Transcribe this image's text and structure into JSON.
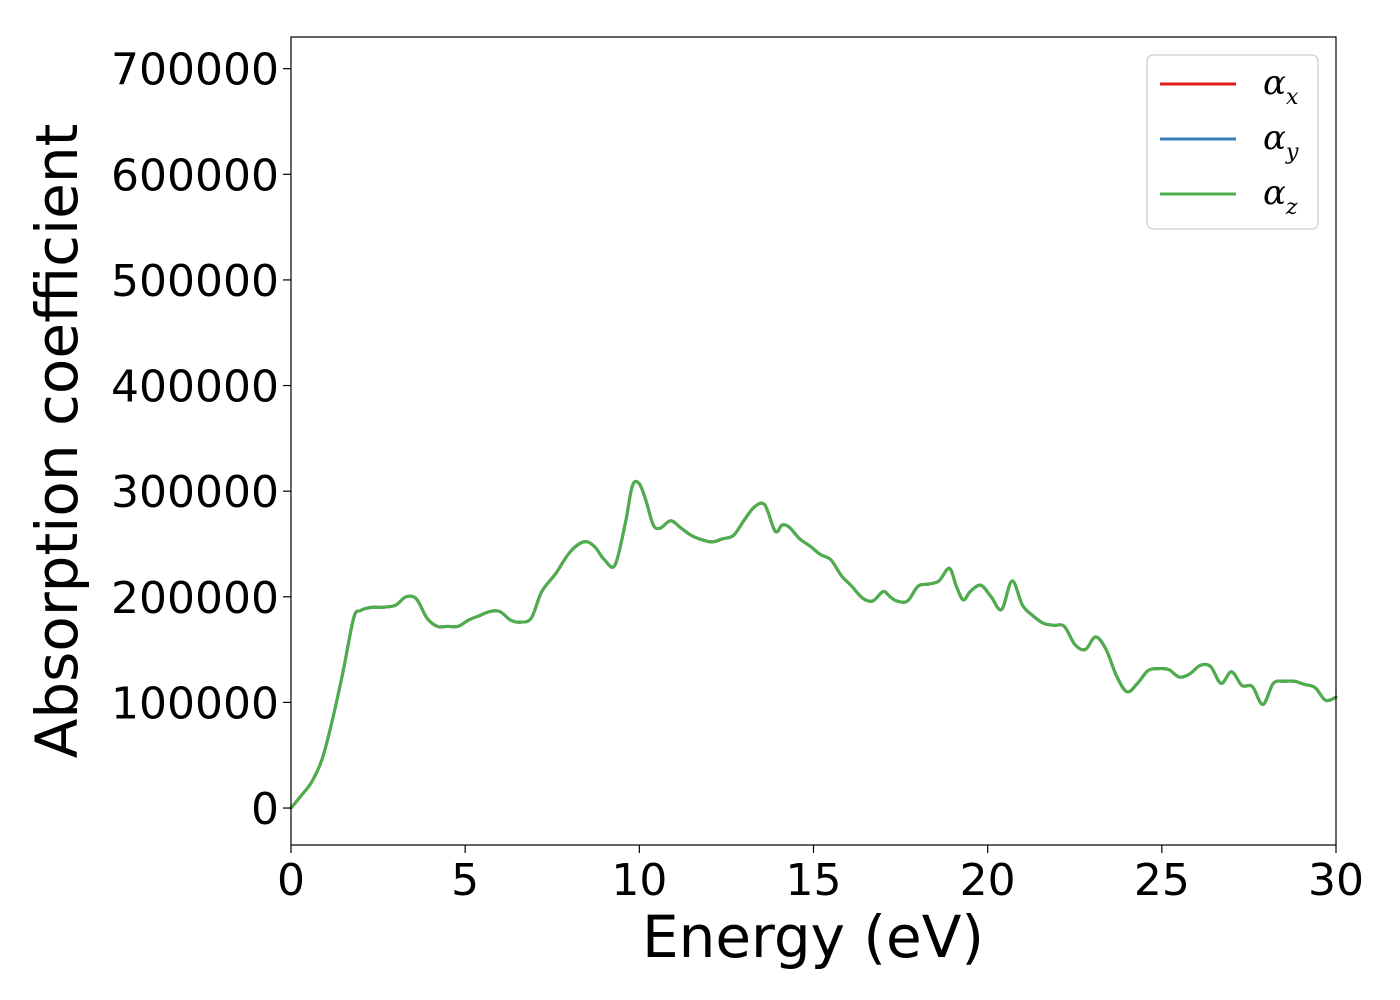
{
  "chart_data": {
    "type": "line",
    "xlabel": "Energy (eV)",
    "ylabel": "Absorption coefficient",
    "xlim": [
      0,
      30
    ],
    "ylim": [
      -35000,
      730000
    ],
    "xticks": [
      "0",
      "5",
      "10",
      "15",
      "20",
      "25",
      "30"
    ],
    "xtick_values": [
      0,
      5,
      10,
      15,
      20,
      25,
      30
    ],
    "yticks": [
      "0",
      "100000",
      "200000",
      "300000",
      "400000",
      "500000",
      "600000",
      "700000"
    ],
    "ytick_values": [
      0,
      100000,
      200000,
      300000,
      400000,
      500000,
      600000,
      700000
    ],
    "grid": false,
    "legend_position": "top-right",
    "x": [
      0,
      0.3,
      0.6,
      0.9,
      1.2,
      1.5,
      1.8,
      2.0,
      2.3,
      2.6,
      3.0,
      3.3,
      3.6,
      3.9,
      4.2,
      4.5,
      4.8,
      5.1,
      5.4,
      5.7,
      6.0,
      6.3,
      6.6,
      6.9,
      7.2,
      7.6,
      8.0,
      8.4,
      8.7,
      9.0,
      9.3,
      9.6,
      9.8,
      10.0,
      10.2,
      10.4,
      10.6,
      10.9,
      11.2,
      11.5,
      11.8,
      12.1,
      12.4,
      12.7,
      13.0,
      13.3,
      13.6,
      13.9,
      14.1,
      14.3,
      14.6,
      14.9,
      15.2,
      15.5,
      15.8,
      16.1,
      16.4,
      16.7,
      17.0,
      17.2,
      17.4,
      17.7,
      18.0,
      18.3,
      18.6,
      18.9,
      19.1,
      19.3,
      19.5,
      19.8,
      20.1,
      20.4,
      20.7,
      21.0,
      21.3,
      21.6,
      21.9,
      22.2,
      22.5,
      22.8,
      23.1,
      23.4,
      23.7,
      24.0,
      24.3,
      24.6,
      24.9,
      25.2,
      25.5,
      25.8,
      26.1,
      26.4,
      26.7,
      27.0,
      27.3,
      27.6,
      27.9,
      28.2,
      28.5,
      28.8,
      29.1,
      29.4,
      29.7,
      30.0
    ],
    "series": [
      {
        "name": "α_x",
        "label_main": "α",
        "label_sub": "x",
        "color": "#e41a1c",
        "values": [
          0,
          12000,
          25000,
          47000,
          85000,
          130000,
          180000,
          187000,
          190000,
          190000,
          192000,
          200000,
          198000,
          180000,
          172000,
          172000,
          172000,
          178000,
          182000,
          186000,
          186000,
          178000,
          176000,
          180000,
          205000,
          222000,
          242000,
          252000,
          248000,
          235000,
          230000,
          270000,
          305000,
          307000,
          290000,
          268000,
          265000,
          272000,
          265000,
          258000,
          254000,
          252000,
          255000,
          258000,
          272000,
          285000,
          287000,
          262000,
          268000,
          266000,
          255000,
          248000,
          240000,
          235000,
          220000,
          210000,
          199000,
          196000,
          205000,
          200000,
          196000,
          196000,
          210000,
          212000,
          215000,
          227000,
          210000,
          197000,
          205000,
          211000,
          200000,
          188000,
          215000,
          192000,
          182000,
          175000,
          173000,
          172000,
          155000,
          150000,
          162000,
          150000,
          125000,
          110000,
          118000,
          130000,
          132000,
          131000,
          124000,
          127000,
          135000,
          134000,
          118000,
          129000,
          116000,
          115000,
          98000,
          118000,
          120000,
          120000,
          117000,
          114000,
          102000,
          105000
        ]
      },
      {
        "name": "α_y",
        "label_main": "α",
        "label_sub": "y",
        "color": "#377eb8",
        "values": [
          0,
          12000,
          25000,
          47000,
          85000,
          130000,
          180000,
          187000,
          190000,
          190000,
          192000,
          200000,
          198000,
          180000,
          172000,
          172000,
          172000,
          178000,
          182000,
          186000,
          186000,
          178000,
          176000,
          180000,
          205000,
          222000,
          242000,
          252000,
          248000,
          235000,
          230000,
          270000,
          305000,
          307000,
          290000,
          268000,
          265000,
          272000,
          265000,
          258000,
          254000,
          252000,
          255000,
          258000,
          272000,
          285000,
          287000,
          262000,
          268000,
          266000,
          255000,
          248000,
          240000,
          235000,
          220000,
          210000,
          199000,
          196000,
          205000,
          200000,
          196000,
          196000,
          210000,
          212000,
          215000,
          227000,
          210000,
          197000,
          205000,
          211000,
          200000,
          188000,
          215000,
          192000,
          182000,
          175000,
          173000,
          172000,
          155000,
          150000,
          162000,
          150000,
          125000,
          110000,
          118000,
          130000,
          132000,
          131000,
          124000,
          127000,
          135000,
          134000,
          118000,
          129000,
          116000,
          115000,
          98000,
          118000,
          120000,
          120000,
          117000,
          114000,
          102000,
          105000
        ]
      },
      {
        "name": "α_z",
        "label_main": "α",
        "label_sub": "z",
        "color": "#4daf4a",
        "values": [
          0,
          12000,
          25000,
          47000,
          85000,
          130000,
          180000,
          187000,
          190000,
          190000,
          192000,
          200000,
          198000,
          180000,
          172000,
          172000,
          172000,
          178000,
          182000,
          186000,
          186000,
          178000,
          176000,
          180000,
          205000,
          222000,
          242000,
          252000,
          248000,
          235000,
          230000,
          270000,
          305000,
          307000,
          290000,
          268000,
          265000,
          272000,
          265000,
          258000,
          254000,
          252000,
          255000,
          258000,
          272000,
          285000,
          287000,
          262000,
          268000,
          266000,
          255000,
          248000,
          240000,
          235000,
          220000,
          210000,
          199000,
          196000,
          205000,
          200000,
          196000,
          196000,
          210000,
          212000,
          215000,
          227000,
          210000,
          197000,
          205000,
          211000,
          200000,
          188000,
          215000,
          192000,
          182000,
          175000,
          173000,
          172000,
          155000,
          150000,
          162000,
          150000,
          125000,
          110000,
          118000,
          130000,
          132000,
          131000,
          124000,
          127000,
          135000,
          134000,
          118000,
          129000,
          116000,
          115000,
          98000,
          118000,
          120000,
          120000,
          117000,
          114000,
          102000,
          105000
        ]
      }
    ]
  }
}
